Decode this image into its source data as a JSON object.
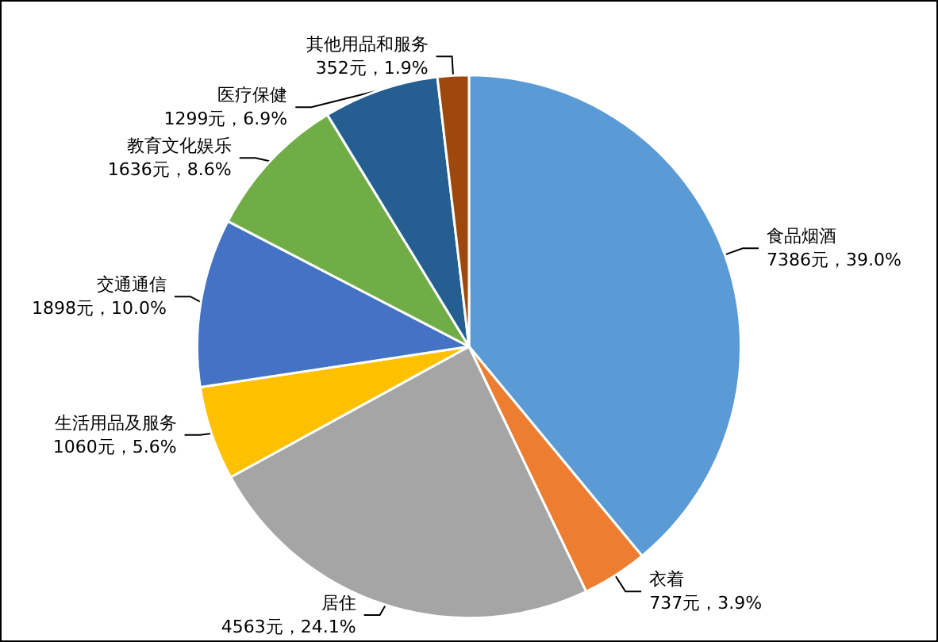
{
  "chart_data": {
    "type": "pie",
    "categories": [
      "食品烟酒",
      "衣着",
      "居住",
      "生活用品及服务",
      "交通通信",
      "教育文化娱乐",
      "医疗保健",
      "其他用品和服务"
    ],
    "values": [
      7386,
      737,
      4563,
      1060,
      1898,
      1636,
      1299,
      352
    ],
    "value_labels": [
      "7386元，39.0%",
      "737元，3.9%",
      "4563元，24.1%",
      "1060元，5.6%",
      "1898元，10.0%",
      "1636元，8.6%",
      "1299元，6.9%",
      "352元，1.9%"
    ],
    "colors": [
      "#5b9bd5",
      "#ed7d31",
      "#a5a5a5",
      "#ffc000",
      "#4472c4",
      "#70ad47",
      "#255e91",
      "#9e480e"
    ],
    "legend": false
  }
}
